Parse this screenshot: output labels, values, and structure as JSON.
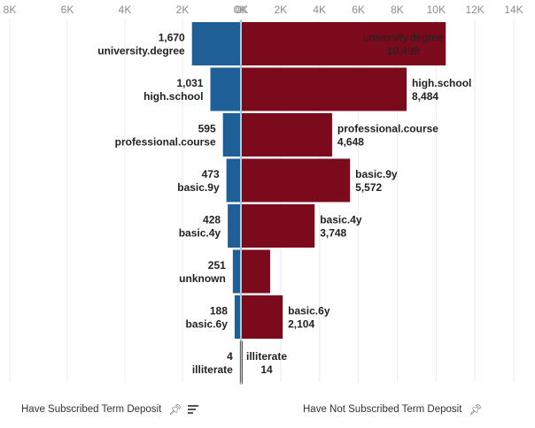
{
  "chart_data": [
    {
      "type": "bar",
      "orientation": "horizontal",
      "direction": "reversed",
      "name": "Have Subscribed Term Deposit",
      "color": "#1f5f97",
      "categories": [
        "university.degree",
        "high.school",
        "professional.course",
        "basic.9y",
        "basic.4y",
        "unknown",
        "basic.6y",
        "illiterate"
      ],
      "values": [
        1670,
        1031,
        595,
        473,
        428,
        251,
        188,
        4
      ],
      "value_labels": [
        "1,670",
        "1,031",
        "595",
        "473",
        "428",
        "251",
        "188",
        "4"
      ],
      "xlim": [
        0,
        8000
      ],
      "ticks": [
        "8K",
        "6K",
        "4K",
        "2K",
        "0K"
      ]
    },
    {
      "type": "bar",
      "orientation": "horizontal",
      "name": "Have Not Subscribed Term Deposit",
      "color": "#7a0a1c",
      "categories": [
        "university.degree",
        "high.school",
        "professional.course",
        "basic.9y",
        "basic.4y",
        "unknown",
        "basic.6y",
        "illiterate"
      ],
      "values": [
        10498,
        8484,
        4648,
        5572,
        3748,
        1457,
        2104,
        14
      ],
      "value_labels": [
        "10,498",
        "8,484",
        "4,648",
        "5,572",
        "3,748",
        "",
        "2,104",
        "14"
      ],
      "xlim": [
        0,
        14000
      ],
      "ticks": [
        "0K",
        "2K",
        "4K",
        "6K",
        "8K",
        "10K",
        "12K",
        "14K"
      ]
    }
  ],
  "legend": {
    "left_label": "Have Subscribed Term Deposit",
    "right_label": "Have Not Subscribed Term Deposit",
    "pin_icon": "pin-icon",
    "sort_icon": "sort-icon"
  }
}
